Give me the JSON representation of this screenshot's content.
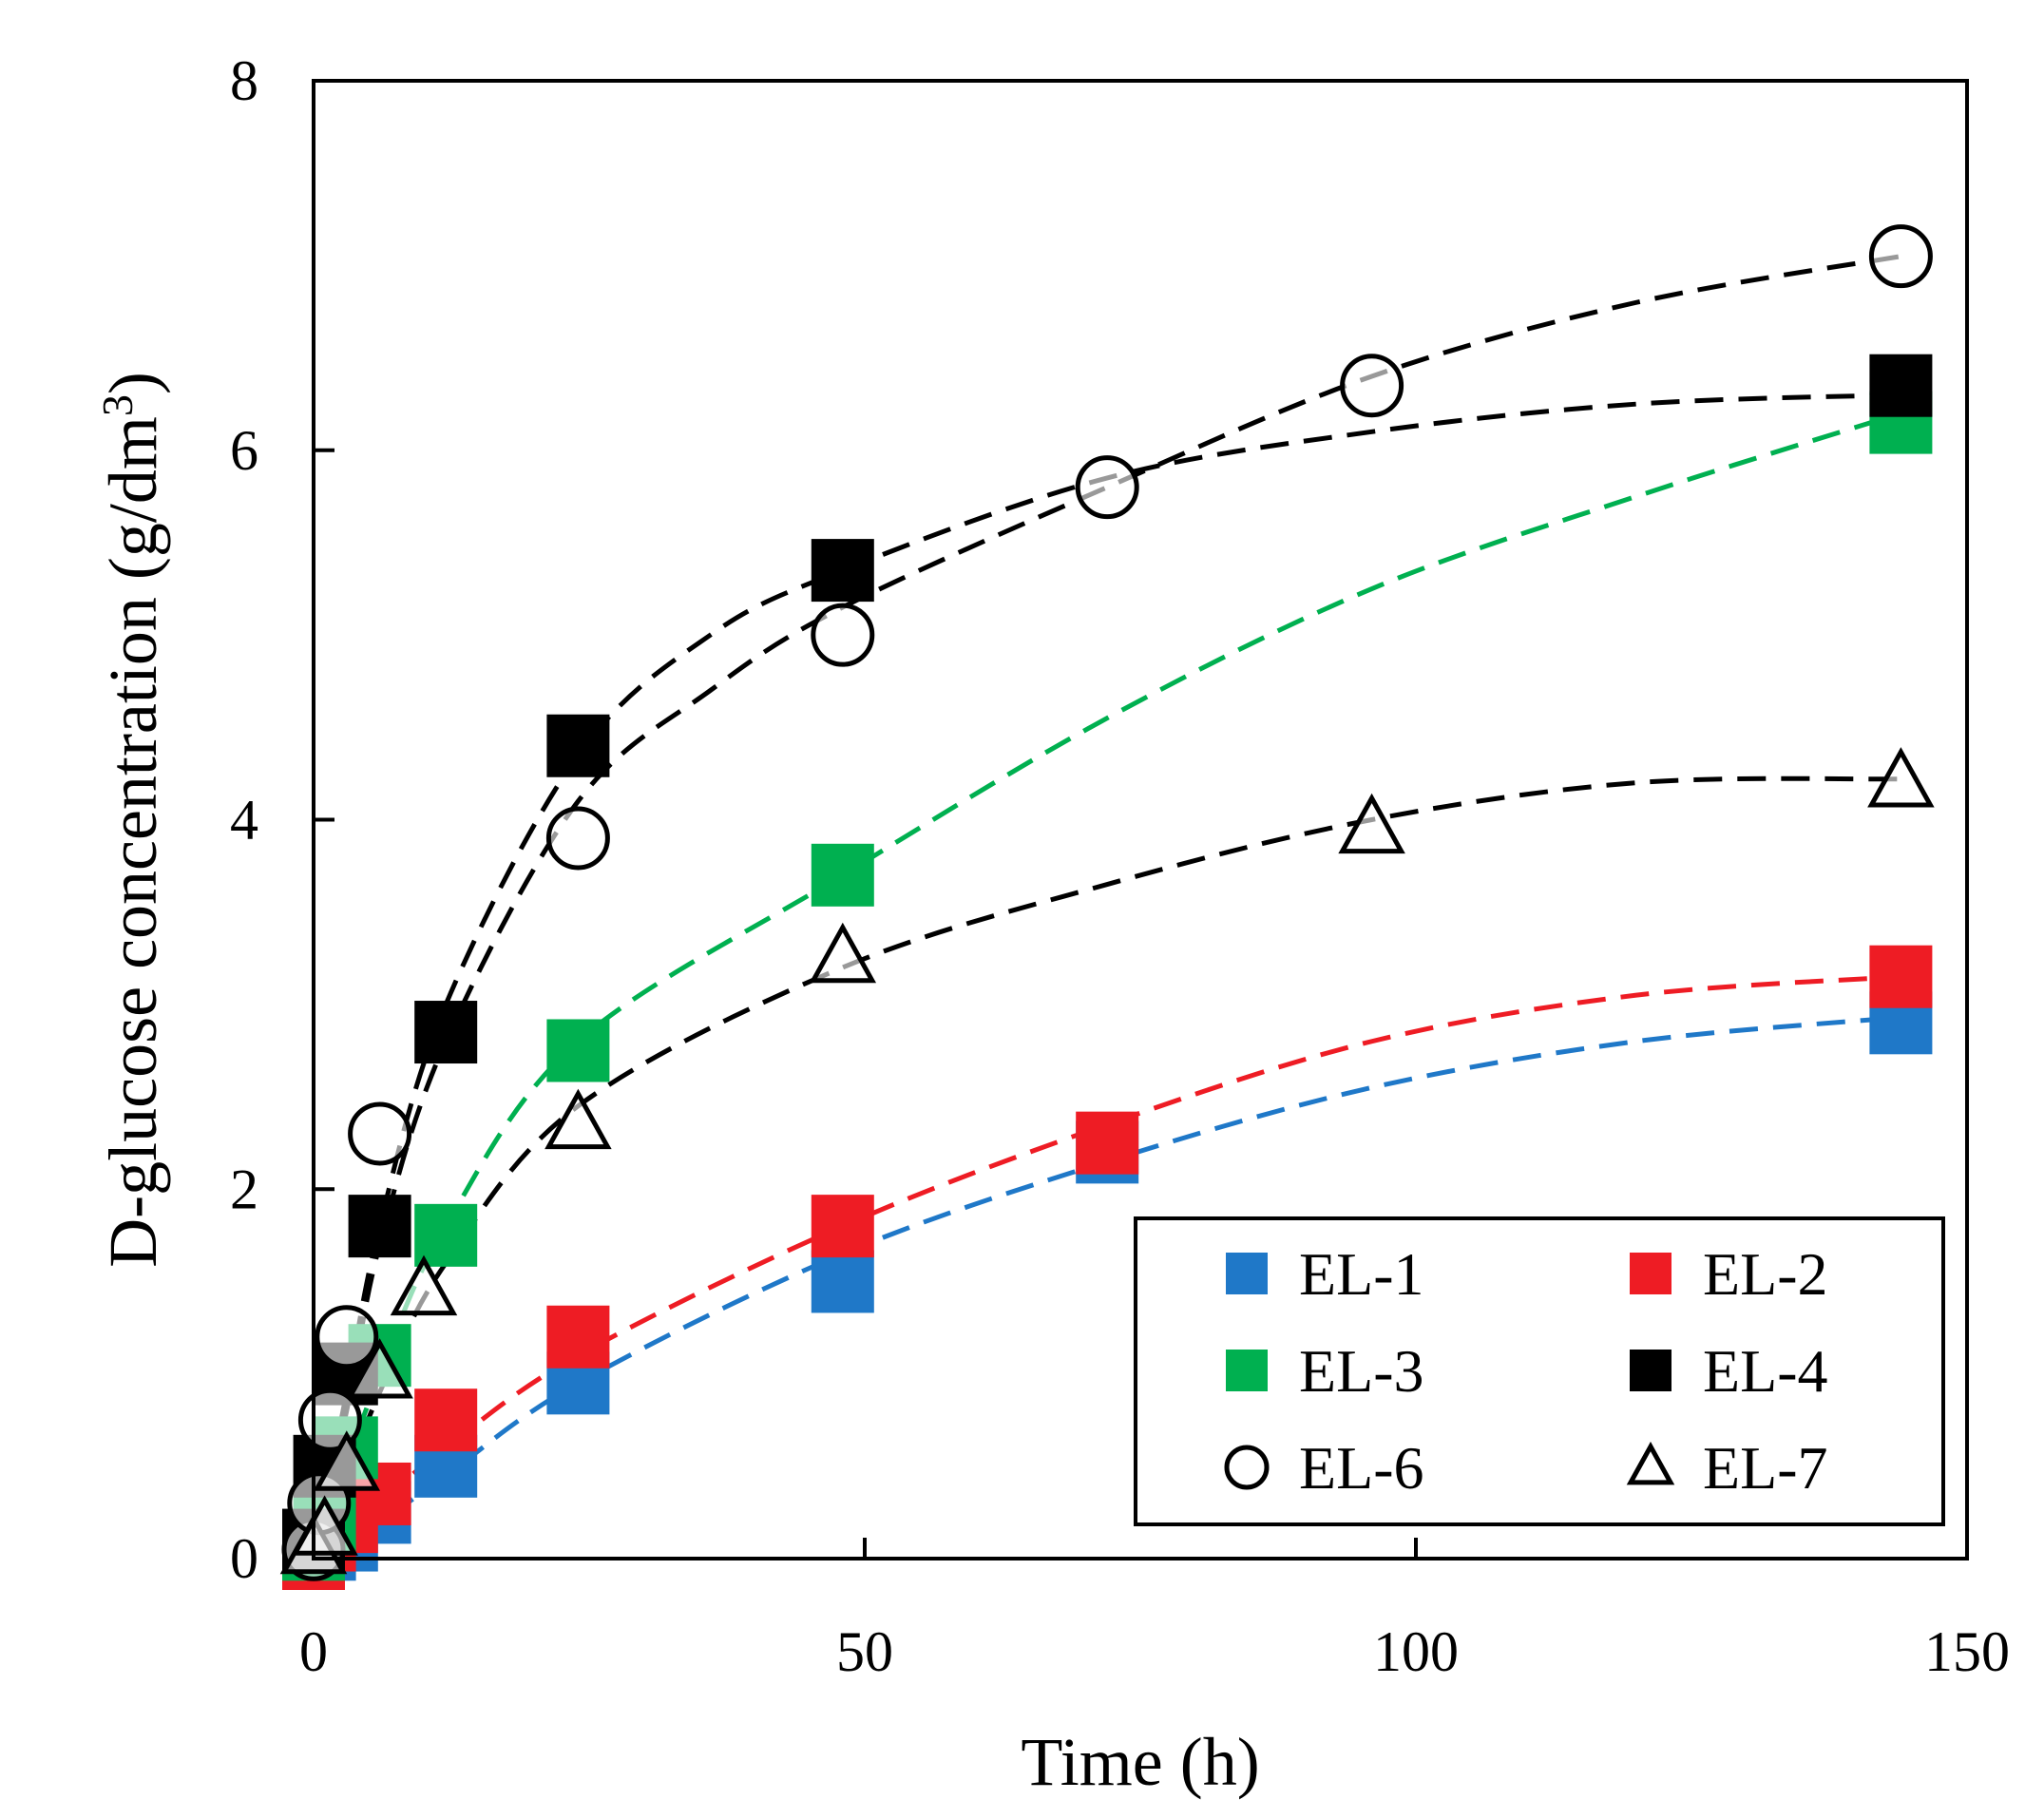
{
  "chart_data": {
    "type": "scatter",
    "title": "",
    "xlabel": "Time (h)",
    "ylabel": "D-glucose concentration (g/dm",
    "ylabel_sup": "3",
    "ylabel_close": ")",
    "xlim": [
      0,
      150
    ],
    "ylim": [
      0,
      8
    ],
    "xticks": [
      0,
      50,
      100,
      150
    ],
    "yticks": [
      0,
      2,
      4,
      6,
      8
    ],
    "grid": false,
    "legend_position": "bottom-right",
    "series": [
      {
        "name": "EL-1",
        "marker": "square",
        "color": "#1f78c8",
        "fill": true,
        "points": [
          [
            0,
            0
          ],
          [
            1,
            0.05
          ],
          [
            3,
            0.1
          ],
          [
            6,
            0.25
          ],
          [
            12,
            0.5
          ],
          [
            24,
            0.95
          ],
          [
            48,
            1.5
          ],
          [
            72,
            2.2
          ],
          [
            144,
            2.9
          ]
        ],
        "fit": [
          [
            0,
            0
          ],
          [
            6,
            0.2
          ],
          [
            12,
            0.45
          ],
          [
            24,
            0.95
          ],
          [
            48,
            1.65
          ],
          [
            72,
            2.15
          ],
          [
            96,
            2.55
          ],
          [
            120,
            2.8
          ],
          [
            144,
            2.93
          ]
        ]
      },
      {
        "name": "EL-2",
        "marker": "square",
        "color": "#ee1c24",
        "fill": true,
        "points": [
          [
            0,
            0
          ],
          [
            1,
            0.1
          ],
          [
            3,
            0.2
          ],
          [
            6,
            0.35
          ],
          [
            12,
            0.75
          ],
          [
            24,
            1.2
          ],
          [
            48,
            1.8
          ],
          [
            72,
            2.25
          ],
          [
            144,
            3.15
          ]
        ],
        "fit": [
          [
            0,
            0
          ],
          [
            6,
            0.3
          ],
          [
            12,
            0.6
          ],
          [
            24,
            1.1
          ],
          [
            48,
            1.8
          ],
          [
            72,
            2.35
          ],
          [
            96,
            2.8
          ],
          [
            120,
            3.05
          ],
          [
            144,
            3.15
          ]
        ]
      },
      {
        "name": "EL-3",
        "marker": "square",
        "color": "#00b050",
        "fill": true,
        "points": [
          [
            0,
            0.05
          ],
          [
            1,
            0.2
          ],
          [
            3,
            0.6
          ],
          [
            6,
            1.1
          ],
          [
            12,
            1.75
          ],
          [
            24,
            2.75
          ],
          [
            48,
            3.7
          ],
          [
            144,
            6.15
          ]
        ],
        "fit": [
          [
            0,
            0
          ],
          [
            6,
            1.0
          ],
          [
            12,
            1.8
          ],
          [
            24,
            2.8
          ],
          [
            48,
            3.7
          ],
          [
            72,
            4.55
          ],
          [
            96,
            5.25
          ],
          [
            120,
            5.75
          ],
          [
            144,
            6.2
          ]
        ]
      },
      {
        "name": "EL-4",
        "marker": "square",
        "color": "#000000",
        "fill": true,
        "points": [
          [
            0,
            0.1
          ],
          [
            1,
            0.5
          ],
          [
            3,
            1.0
          ],
          [
            6,
            1.8
          ],
          [
            12,
            2.85
          ],
          [
            24,
            4.4
          ],
          [
            48,
            5.35
          ],
          [
            144,
            6.35
          ]
        ],
        "fit": [
          [
            0,
            0
          ],
          [
            3,
            0.9
          ],
          [
            6,
            1.8
          ],
          [
            12,
            3.0
          ],
          [
            24,
            4.35
          ],
          [
            36,
            5.0
          ],
          [
            48,
            5.35
          ],
          [
            72,
            5.85
          ],
          [
            96,
            6.1
          ],
          [
            120,
            6.25
          ],
          [
            144,
            6.3
          ]
        ]
      },
      {
        "name": "EL-6",
        "marker": "circle",
        "color": "#000000",
        "fill": false,
        "points": [
          [
            0,
            0.05
          ],
          [
            0.5,
            0.3
          ],
          [
            1.5,
            0.75
          ],
          [
            3,
            1.2
          ],
          [
            6,
            2.3
          ],
          [
            24,
            3.9
          ],
          [
            48,
            5.0
          ],
          [
            72,
            5.8
          ],
          [
            96,
            6.35
          ],
          [
            144,
            7.05
          ]
        ],
        "fit": [
          [
            0,
            0
          ],
          [
            3,
            0.8
          ],
          [
            6,
            1.7
          ],
          [
            12,
            2.8
          ],
          [
            24,
            4.1
          ],
          [
            36,
            4.7
          ],
          [
            48,
            5.15
          ],
          [
            72,
            5.8
          ],
          [
            96,
            6.4
          ],
          [
            120,
            6.8
          ],
          [
            144,
            7.05
          ]
        ]
      },
      {
        "name": "EL-7",
        "marker": "triangle",
        "color": "#000000",
        "fill": false,
        "points": [
          [
            0,
            0.05
          ],
          [
            1,
            0.15
          ],
          [
            3,
            0.5
          ],
          [
            6,
            1.0
          ],
          [
            10,
            1.45
          ],
          [
            24,
            2.35
          ],
          [
            48,
            3.25
          ],
          [
            96,
            3.95
          ],
          [
            144,
            4.2
          ]
        ],
        "fit": [
          [
            0,
            0
          ],
          [
            6,
            0.9
          ],
          [
            12,
            1.6
          ],
          [
            24,
            2.45
          ],
          [
            48,
            3.2
          ],
          [
            72,
            3.65
          ],
          [
            96,
            4.0
          ],
          [
            120,
            4.2
          ],
          [
            144,
            4.22
          ]
        ]
      }
    ]
  }
}
